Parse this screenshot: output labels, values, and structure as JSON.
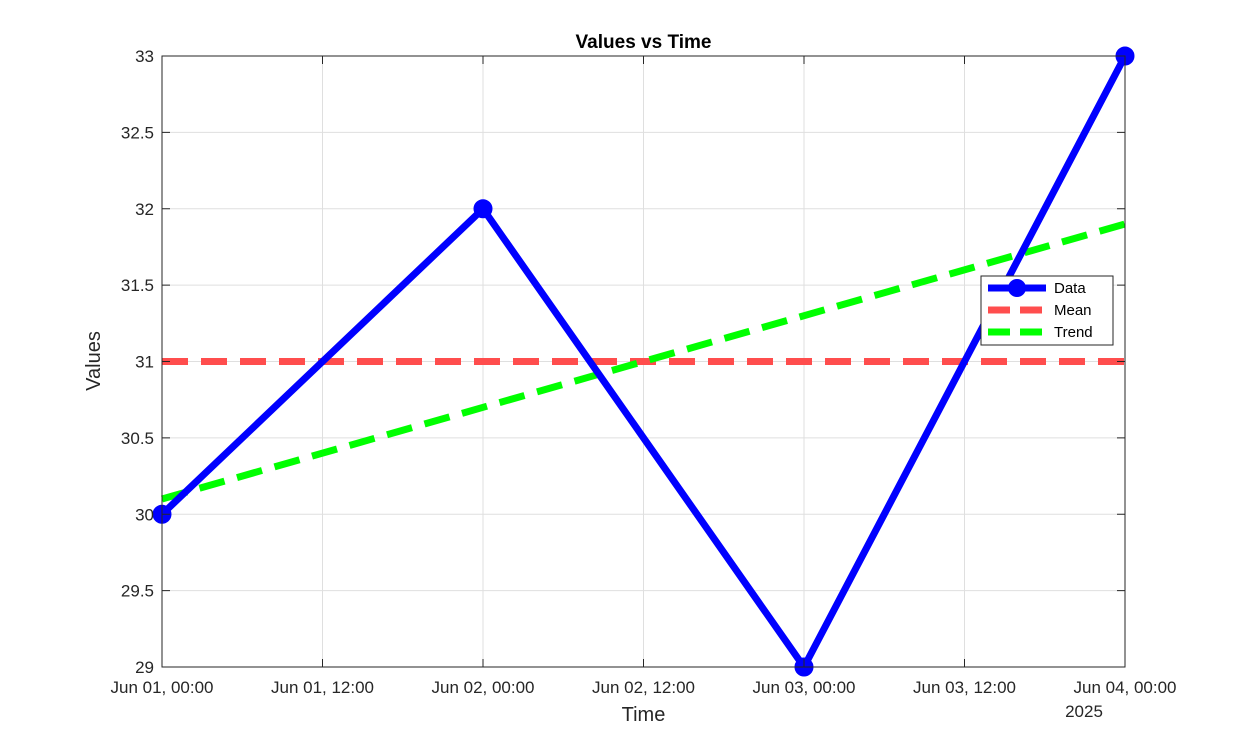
{
  "chart_data": {
    "type": "line",
    "title": "Values vs Time",
    "xlabel": "Time",
    "ylabel": "Values",
    "x_type": "datetime",
    "xlim": [
      "2025-06-01T00:00",
      "2025-06-04T00:00"
    ],
    "ylim": [
      29,
      33
    ],
    "xticks": [
      {
        "at": "2025-06-01T00:00",
        "label": "Jun 01, 00:00"
      },
      {
        "at": "2025-06-01T12:00",
        "label": "Jun 01, 12:00"
      },
      {
        "at": "2025-06-02T00:00",
        "label": "Jun 02, 00:00"
      },
      {
        "at": "2025-06-02T12:00",
        "label": "Jun 02, 12:00"
      },
      {
        "at": "2025-06-03T00:00",
        "label": "Jun 03, 00:00"
      },
      {
        "at": "2025-06-03T12:00",
        "label": "Jun 03, 12:00"
      },
      {
        "at": "2025-06-04T00:00",
        "label": "Jun 04, 00:00"
      }
    ],
    "xtick_secondary": "2025",
    "yticks": [
      29,
      29.5,
      30,
      30.5,
      31,
      31.5,
      32,
      32.5,
      33
    ],
    "ytick_labels": [
      "29",
      "29.5",
      "30",
      "30.5",
      "31",
      "31.5",
      "32",
      "32.5",
      "33"
    ],
    "grid": true,
    "legend_position": "right",
    "series": [
      {
        "name": "Data",
        "color": "#0000ff",
        "line_style": "solid",
        "marker": "circle",
        "x": [
          "2025-06-01T00:00",
          "2025-06-02T00:00",
          "2025-06-03T00:00",
          "2025-06-04T00:00"
        ],
        "y": [
          30,
          32,
          29,
          33
        ]
      },
      {
        "name": "Mean",
        "color": "#ff4d4d",
        "line_style": "dashed",
        "marker": "none",
        "x": [
          "2025-06-01T00:00",
          "2025-06-04T00:00"
        ],
        "y": [
          31,
          31
        ]
      },
      {
        "name": "Trend",
        "color": "#00ff00",
        "line_style": "dashed",
        "marker": "none",
        "x": [
          "2025-06-01T00:00",
          "2025-06-04T00:00"
        ],
        "y": [
          30.1,
          31.9
        ]
      }
    ]
  }
}
